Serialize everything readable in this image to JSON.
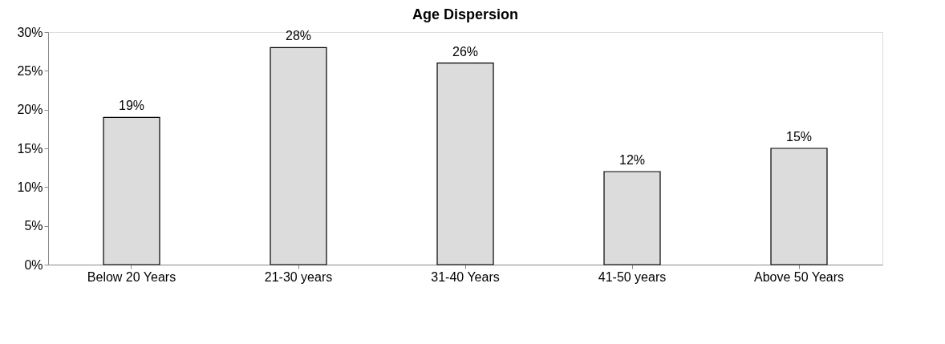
{
  "chart_data": {
    "type": "bar",
    "title": "Age Dispersion",
    "categories": [
      "Below 20 Years",
      "21-30 years",
      "31-40 Years",
      "41-50 years",
      "Above 50 Years"
    ],
    "values": [
      19,
      28,
      26,
      12,
      15
    ],
    "value_labels": [
      "19%",
      "28%",
      "26%",
      "12%",
      "15%"
    ],
    "color": "#dcdcdc",
    "ylim": [
      0,
      30
    ],
    "yticks": [
      {
        "value": 0,
        "label": "0%"
      },
      {
        "value": 5,
        "label": "5%"
      },
      {
        "value": 10,
        "label": "10%"
      },
      {
        "value": 15,
        "label": "15%"
      },
      {
        "value": 20,
        "label": "20%"
      },
      {
        "value": 25,
        "label": "25%"
      },
      {
        "value": 30,
        "label": "30%"
      }
    ],
    "grid": false
  }
}
